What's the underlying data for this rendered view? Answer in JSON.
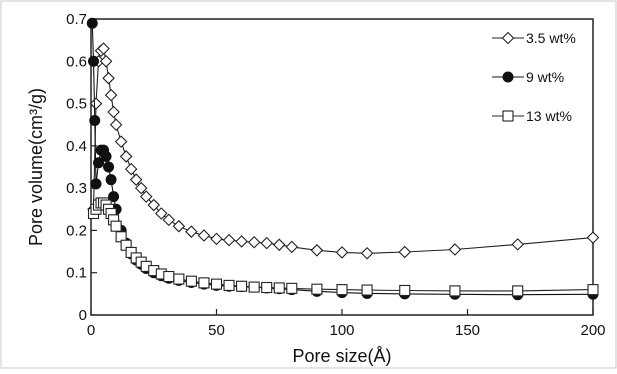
{
  "chart_data": {
    "type": "line",
    "title": "",
    "xlabel": "Pore size(Å)",
    "ylabel": "Pore volume(cm³/g)",
    "xlim": [
      0,
      200
    ],
    "ylim": [
      0,
      0.7
    ],
    "xticks": [
      0,
      50,
      100,
      150,
      200
    ],
    "xtick_labels": [
      "0",
      "50",
      "100",
      "150",
      "200"
    ],
    "yticks": [
      0,
      0.1,
      0.2,
      0.3,
      0.4,
      0.5,
      0.6,
      0.7
    ],
    "ytick_labels": [
      "0",
      "0.1",
      "0.2",
      "0.3",
      "0.4",
      "0.5",
      "0.6",
      "0.7"
    ],
    "grid": false,
    "legend_position": "top-right",
    "series": [
      {
        "name": "3.5 wt%",
        "marker": "diamond-open",
        "color": "#222222",
        "x": [
          1,
          2,
          3,
          4,
          5,
          6,
          7,
          8,
          9,
          10,
          12,
          14,
          16,
          18,
          20,
          22,
          25,
          28,
          31,
          35,
          40,
          45,
          50,
          55,
          60,
          65,
          70,
          75,
          80,
          90,
          100,
          110,
          125,
          145,
          170,
          200
        ],
        "values": [
          0.25,
          0.5,
          0.6,
          0.625,
          0.63,
          0.6,
          0.56,
          0.52,
          0.48,
          0.45,
          0.41,
          0.375,
          0.345,
          0.32,
          0.3,
          0.28,
          0.26,
          0.24,
          0.225,
          0.21,
          0.197,
          0.188,
          0.18,
          0.177,
          0.174,
          0.172,
          0.17,
          0.166,
          0.161,
          0.153,
          0.148,
          0.146,
          0.149,
          0.155,
          0.167,
          0.183
        ]
      },
      {
        "name": "9 wt%",
        "marker": "circle-filled",
        "color": "#111111",
        "x": [
          0.5,
          1,
          1.5,
          2,
          3,
          4,
          5,
          6,
          7,
          8,
          9,
          10,
          12,
          14,
          16,
          18,
          20,
          22,
          25,
          28,
          31,
          35,
          40,
          45,
          50,
          55,
          60,
          65,
          70,
          75,
          80,
          90,
          100,
          110,
          125,
          145,
          170,
          200
        ],
        "values": [
          0.69,
          0.6,
          0.46,
          0.31,
          0.36,
          0.39,
          0.39,
          0.375,
          0.35,
          0.32,
          0.28,
          0.25,
          0.2,
          0.17,
          0.145,
          0.13,
          0.12,
          0.11,
          0.1,
          0.093,
          0.087,
          0.082,
          0.077,
          0.073,
          0.07,
          0.068,
          0.067,
          0.066,
          0.064,
          0.062,
          0.06,
          0.056,
          0.053,
          0.051,
          0.05,
          0.049,
          0.048,
          0.049
        ]
      },
      {
        "name": "13 wt%",
        "marker": "square-open",
        "color": "#222222",
        "x": [
          1,
          2,
          3,
          4,
          5,
          6,
          7,
          8,
          9,
          10,
          12,
          14,
          16,
          18,
          20,
          22,
          25,
          28,
          31,
          35,
          40,
          45,
          50,
          55,
          60,
          65,
          70,
          75,
          80,
          90,
          100,
          110,
          125,
          145,
          170,
          200
        ],
        "values": [
          0.24,
          0.25,
          0.26,
          0.265,
          0.265,
          0.26,
          0.25,
          0.24,
          0.225,
          0.21,
          0.185,
          0.165,
          0.148,
          0.135,
          0.125,
          0.115,
          0.105,
          0.097,
          0.091,
          0.085,
          0.08,
          0.076,
          0.073,
          0.07,
          0.068,
          0.066,
          0.065,
          0.064,
          0.063,
          0.061,
          0.06,
          0.059,
          0.058,
          0.057,
          0.057,
          0.06
        ]
      }
    ]
  }
}
